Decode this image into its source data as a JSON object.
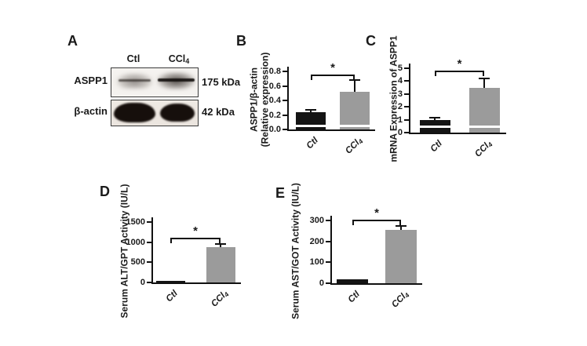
{
  "panels": {
    "a": {
      "letter": "A",
      "lanes": [
        "Ctl",
        "CCl4"
      ],
      "rows": [
        {
          "label": "ASPP1",
          "size": "175 kDa"
        },
        {
          "label": "β-actin",
          "size": "42 kDa"
        }
      ]
    },
    "b": {
      "letter": "B"
    },
    "c": {
      "letter": "C"
    },
    "d": {
      "letter": "D"
    },
    "e": {
      "letter": "E"
    }
  },
  "colors": {
    "bar_black": "#141414",
    "bar_gray": "#9b9b9b",
    "axis": "#111111",
    "text": "#1a1a1a"
  },
  "chart_data": [
    {
      "panel": "B",
      "type": "bar",
      "categories": [
        "Ctl",
        "CCl4"
      ],
      "values": [
        0.24,
        0.52
      ],
      "errors": [
        0.035,
        0.16
      ],
      "bar_colors": [
        "#141414",
        "#9b9b9b"
      ],
      "ylabel_lines": [
        "ASPP1/β-actin",
        "(Relative expression)"
      ],
      "ylim": [
        0,
        0.8
      ],
      "yticks": [
        "0.0",
        "0.2",
        "0.4",
        "0.6",
        "0.8"
      ],
      "significance": "*",
      "grid": false,
      "legend": "none"
    },
    {
      "panel": "C",
      "type": "bar",
      "categories": [
        "Ctl",
        "CCl4"
      ],
      "values": [
        1.0,
        3.5
      ],
      "errors": [
        0.15,
        0.7
      ],
      "bar_colors": [
        "#141414",
        "#9b9b9b"
      ],
      "ylabel_lines": [
        "mRNA Expression of ASPP1"
      ],
      "ylim": [
        0,
        5
      ],
      "yticks": [
        "0",
        "1",
        "2",
        "3",
        "4",
        "5"
      ],
      "significance": "*",
      "grid": false,
      "legend": "none"
    },
    {
      "panel": "D",
      "type": "bar",
      "categories": [
        "Ctl",
        "CCl4"
      ],
      "values": [
        40,
        880
      ],
      "errors": [
        0,
        80
      ],
      "bar_colors": [
        "#141414",
        "#9b9b9b"
      ],
      "ylabel_lines": [
        "Serum ALT/GPT Activity (IU/L)"
      ],
      "ylim": [
        0,
        1500
      ],
      "yticks": [
        "0",
        "500",
        "1000",
        "1500"
      ],
      "significance": "*",
      "grid": false,
      "legend": "none"
    },
    {
      "panel": "E",
      "type": "bar",
      "categories": [
        "Ctl",
        "CCl4"
      ],
      "values": [
        20,
        255
      ],
      "errors": [
        0,
        18
      ],
      "bar_colors": [
        "#141414",
        "#9b9b9b"
      ],
      "ylabel_lines": [
        "Serum AST/GOT Activity (IU/L)"
      ],
      "ylim": [
        0,
        300
      ],
      "yticks": [
        "0",
        "100",
        "200",
        "300"
      ],
      "significance": "*",
      "grid": false,
      "legend": "none"
    }
  ]
}
